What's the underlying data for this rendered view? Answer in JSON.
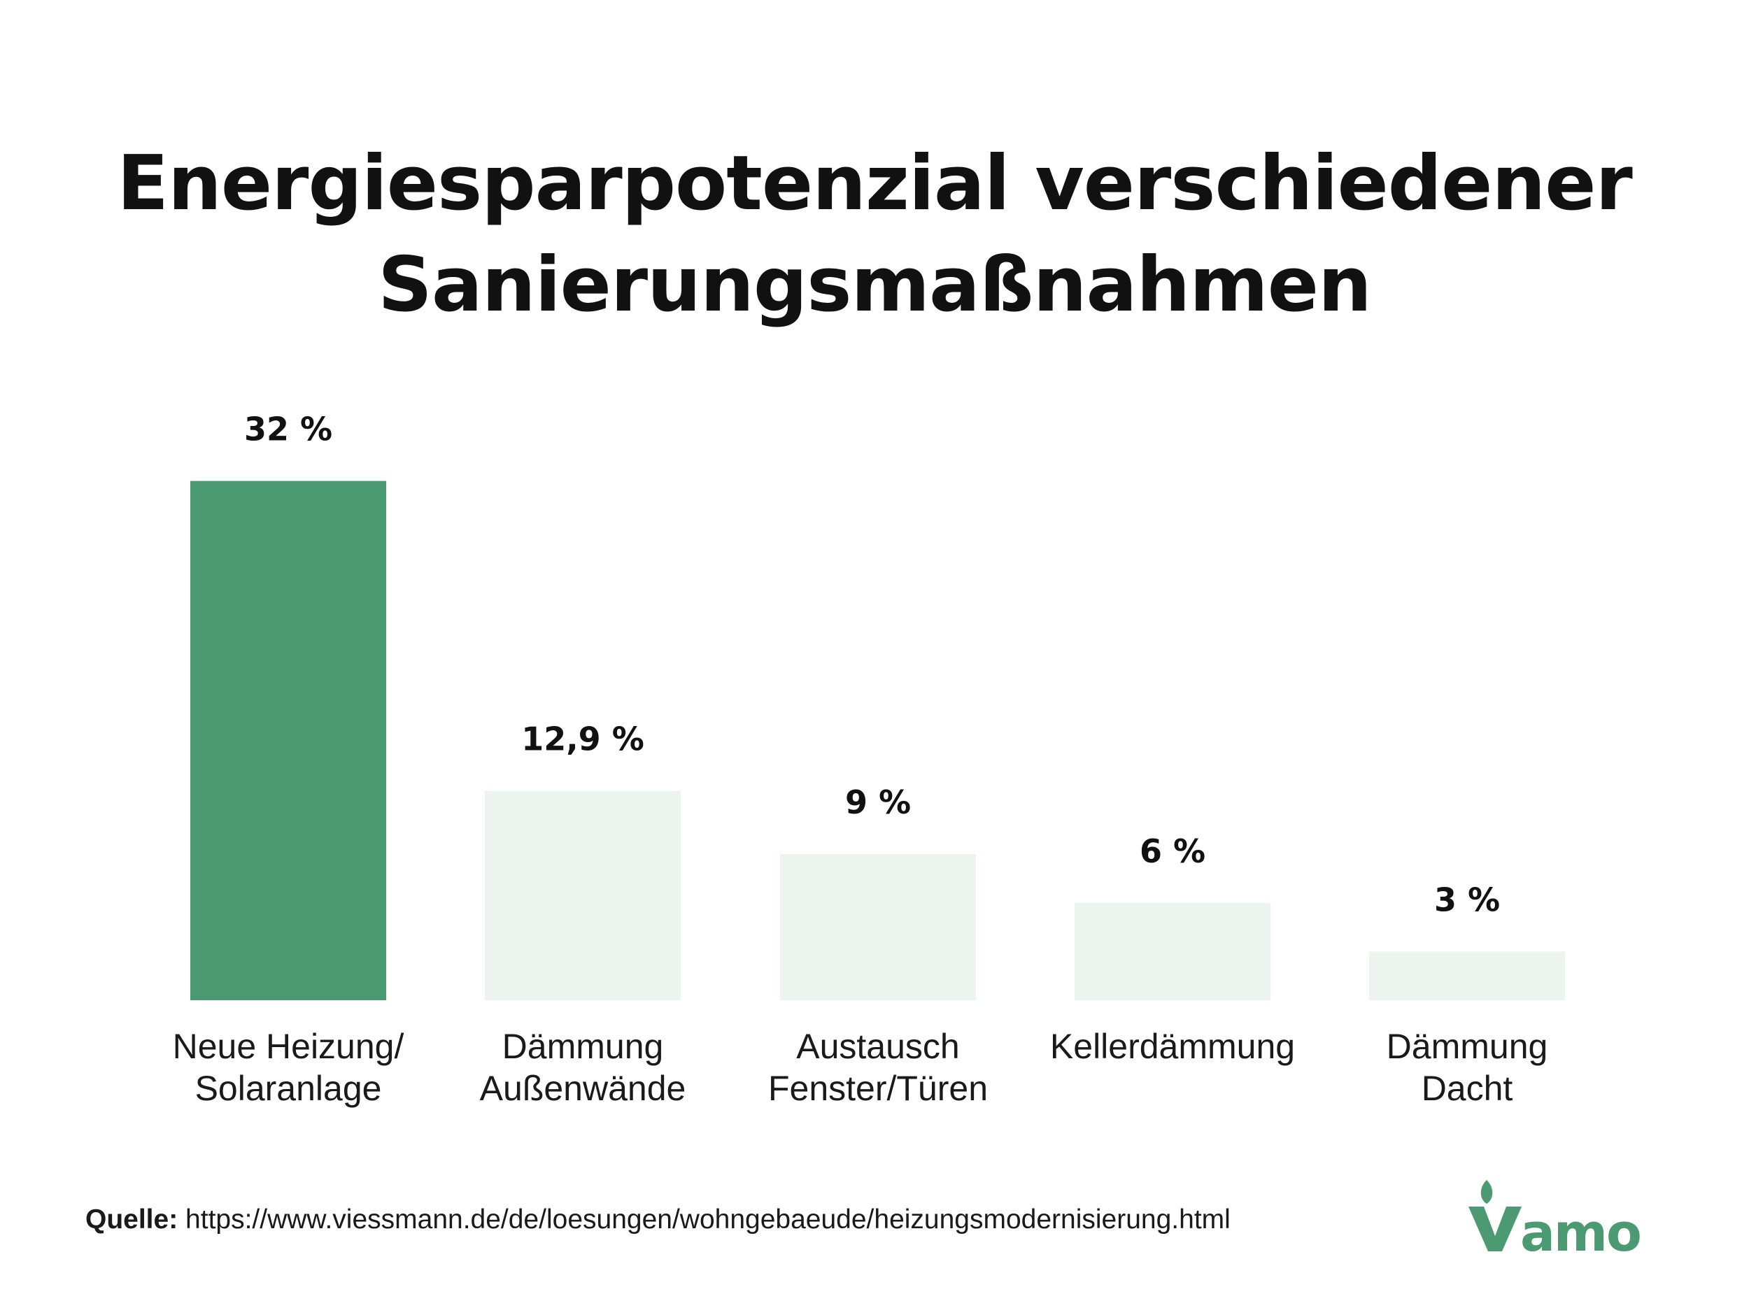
{
  "title": {
    "line1": "Energiesparpotenzial verschiedener",
    "line2": "Sanierungsmaßnahmen"
  },
  "chart_data": {
    "type": "bar",
    "categories": [
      [
        "Neue Heizung/",
        "Solaranlage"
      ],
      [
        "Dämmung",
        "Außenwände"
      ],
      [
        "Austausch",
        "Fenster/Türen"
      ],
      [
        "Kellerdämmung"
      ],
      [
        "Dämmung",
        "Dacht"
      ]
    ],
    "values": [
      32,
      12.9,
      9,
      6,
      3
    ],
    "value_labels": [
      "32 %",
      "12,9 %",
      "9 %",
      "6 %",
      "3 %"
    ],
    "highlight_index": 0,
    "colors": {
      "highlight": "#4b9a71",
      "default": "#ecf4ef"
    },
    "grid": false
  },
  "source": {
    "label": "Quelle:",
    "url": "https://www.viessmann.de/de/loesungen/wohngebaeude/heizungsmodernisierung.html"
  },
  "logo": {
    "text": "Vamo",
    "color": "#4b9a71"
  }
}
